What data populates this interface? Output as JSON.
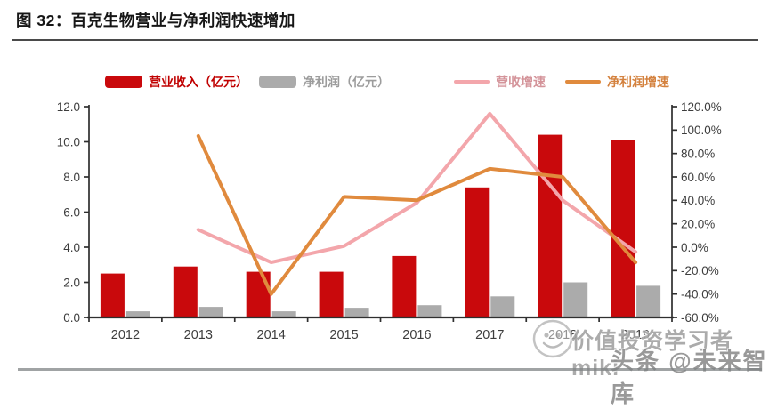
{
  "header": {
    "title": "图 32：百克生物营业与净利润快速增加"
  },
  "watermark": {
    "line1": "价值投资学习者miki",
    "line2": "头条 @未来智库",
    "logo": "smiley-stamp"
  },
  "colors": {
    "revenue_bar": "#c9090c",
    "net_profit_bar": "#ababab",
    "revenue_growth_line": "#f3a6ab",
    "net_profit_growth_line": "#e08a3d",
    "axis_line": "#2f2f2f",
    "axis_text": "#3d3d3d"
  },
  "chart_data": {
    "type": "bar",
    "subtype": "bar-line-combo",
    "title": "百克生物营业与净利润快速增加",
    "legend_position": "top",
    "grid": false,
    "categories": [
      "2012",
      "2013",
      "2014",
      "2015",
      "2016",
      "2017",
      "2018",
      "2019"
    ],
    "series": [
      {
        "id": "revenue",
        "name": "营业收入（亿元）",
        "type": "bar",
        "axis": "left",
        "color": "#c9090c",
        "label_color": "#c00000",
        "values": [
          2.5,
          2.9,
          2.6,
          2.6,
          3.5,
          7.4,
          10.4,
          10.1
        ]
      },
      {
        "id": "net-profit",
        "name": "净利润（亿元）",
        "type": "bar",
        "axis": "left",
        "color": "#ababab",
        "label_color": "#9c9c9c",
        "values": [
          0.35,
          0.6,
          0.35,
          0.55,
          0.7,
          1.2,
          2.0,
          1.8
        ]
      },
      {
        "id": "revenue-growth",
        "name": "营收增速",
        "type": "line",
        "axis": "right",
        "unit": "%",
        "color": "#f3a6ab",
        "label_color": "#d4949a",
        "values": [
          null,
          15,
          -13,
          1,
          38,
          114,
          40,
          -4
        ]
      },
      {
        "id": "net-profit-growth",
        "name": "净利润增速",
        "type": "line",
        "axis": "right",
        "unit": "%",
        "color": "#e08a3d",
        "label_color": "#d4823f",
        "values": [
          null,
          95,
          -40,
          43,
          40,
          67,
          60,
          -13
        ]
      }
    ],
    "left_axis": {
      "min": 0,
      "max": 12,
      "step": 2,
      "tick_labels": [
        "12.0",
        "10.0",
        "8.0",
        "6.0",
        "4.0",
        "2.0",
        "0.0"
      ]
    },
    "right_axis": {
      "min": -60,
      "max": 120,
      "step": 20,
      "tick_labels": [
        "120.0%",
        "100.0%",
        "80.0%",
        "60.0%",
        "40.0%",
        "20.0%",
        "0.0%",
        "-20.0%",
        "-40.0%",
        "-60.0%"
      ]
    }
  }
}
